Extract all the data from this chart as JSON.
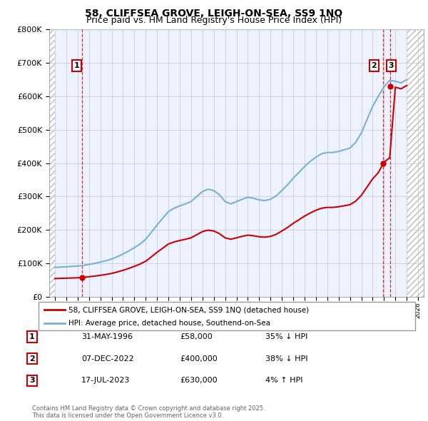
{
  "title": "58, CLIFFSEA GROVE, LEIGH-ON-SEA, SS9 1NQ",
  "subtitle": "Price paid vs. HM Land Registry's House Price Index (HPI)",
  "ylim": [
    0,
    800000
  ],
  "yticks": [
    0,
    100000,
    200000,
    300000,
    400000,
    500000,
    600000,
    700000,
    800000
  ],
  "ytick_labels": [
    "£0",
    "£100K",
    "£200K",
    "£300K",
    "£400K",
    "£500K",
    "£600K",
    "£700K",
    "£800K"
  ],
  "xlim": [
    1993.5,
    2026.5
  ],
  "xticks": [
    1994,
    1995,
    1996,
    1997,
    1998,
    1999,
    2000,
    2001,
    2002,
    2003,
    2004,
    2005,
    2006,
    2007,
    2008,
    2009,
    2010,
    2011,
    2012,
    2013,
    2014,
    2015,
    2016,
    2017,
    2018,
    2019,
    2020,
    2021,
    2022,
    2023,
    2024,
    2025,
    2026
  ],
  "red_line_color": "#cc0000",
  "blue_line_color": "#7ab0d4",
  "marker_color": "#cc0000",
  "bg_color": "#eef2ff",
  "grid_color": "#c0c8d8",
  "vline_color": "#cc0000",
  "transactions": [
    {
      "year": 1996.41,
      "price": 58000,
      "label": "1"
    },
    {
      "year": 2022.92,
      "price": 400000,
      "label": "2"
    },
    {
      "year": 2023.54,
      "price": 630000,
      "label": "3"
    }
  ],
  "legend_entries": [
    {
      "color": "#cc0000",
      "label": "58, CLIFFSEA GROVE, LEIGH-ON-SEA, SS9 1NQ (detached house)"
    },
    {
      "color": "#7ab0d4",
      "label": "HPI: Average price, detached house, Southend-on-Sea"
    }
  ],
  "table_rows": [
    {
      "num": "1",
      "date": "31-MAY-1996",
      "price": "£58,000",
      "hpi": "35% ↓ HPI"
    },
    {
      "num": "2",
      "date": "07-DEC-2022",
      "price": "£400,000",
      "hpi": "38% ↓ HPI"
    },
    {
      "num": "3",
      "date": "17-JUL-2023",
      "price": "£630,000",
      "hpi": "4% ↑ HPI"
    }
  ],
  "copyright": "Contains HM Land Registry data © Crown copyright and database right 2025.\nThis data is licensed under the Open Government Licence v3.0.",
  "title_fontsize": 10,
  "subtitle_fontsize": 9,
  "years_hpi": [
    1994,
    1994.5,
    1995,
    1995.5,
    1996,
    1996.5,
    1997,
    1997.5,
    1998,
    1998.5,
    1999,
    1999.5,
    2000,
    2000.5,
    2001,
    2001.5,
    2002,
    2002.5,
    2003,
    2003.5,
    2004,
    2004.5,
    2005,
    2005.5,
    2006,
    2006.5,
    2007,
    2007.5,
    2008,
    2008.5,
    2009,
    2009.5,
    2010,
    2010.5,
    2011,
    2011.5,
    2012,
    2012.5,
    2013,
    2013.5,
    2014,
    2014.5,
    2015,
    2015.5,
    2016,
    2016.5,
    2017,
    2017.5,
    2018,
    2018.5,
    2019,
    2019.5,
    2020,
    2020.5,
    2021,
    2021.5,
    2022,
    2022.5,
    2023,
    2023.5,
    2024,
    2024.5,
    2025
  ],
  "hpi_values": [
    88000,
    89000,
    90000,
    91000,
    92000,
    94000,
    97000,
    100000,
    104000,
    108000,
    113000,
    120000,
    128000,
    137000,
    147000,
    158000,
    172000,
    193000,
    215000,
    235000,
    255000,
    265000,
    272000,
    278000,
    285000,
    300000,
    315000,
    322000,
    318000,
    305000,
    285000,
    278000,
    285000,
    292000,
    298000,
    295000,
    290000,
    288000,
    292000,
    302000,
    318000,
    335000,
    355000,
    372000,
    390000,
    405000,
    418000,
    428000,
    432000,
    432000,
    435000,
    440000,
    445000,
    462000,
    490000,
    530000,
    570000,
    600000,
    628000,
    648000,
    645000,
    640000,
    650000
  ]
}
